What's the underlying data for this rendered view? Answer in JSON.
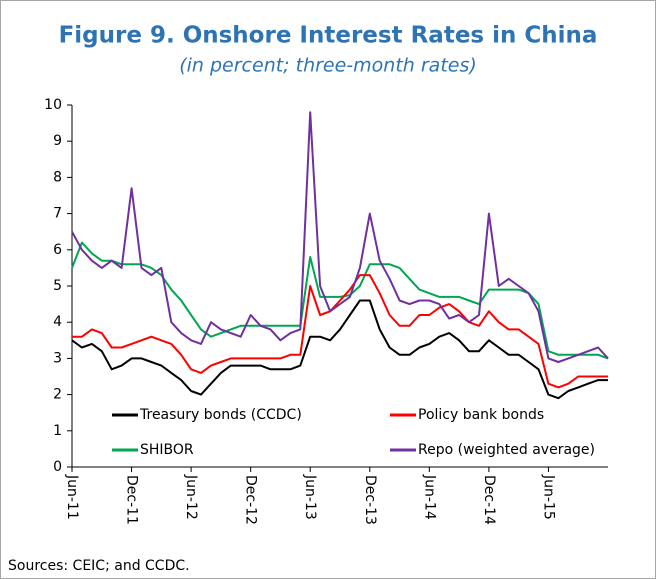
{
  "chart_data": {
    "type": "line",
    "title": "Figure 9. Onshore Interest Rates in China",
    "subtitle": "(in percent; three-month rates)",
    "source": "Sources: CEIC; and CCDC.",
    "categories": [
      "Jun-11",
      null,
      null,
      null,
      null,
      null,
      "Dec-11",
      null,
      null,
      null,
      null,
      null,
      "Jun-12",
      null,
      null,
      null,
      null,
      null,
      "Dec-12",
      null,
      null,
      null,
      null,
      null,
      "Jun-13",
      null,
      null,
      null,
      null,
      null,
      "Dec-13",
      null,
      null,
      null,
      null,
      null,
      "Jun-14",
      null,
      null,
      null,
      null,
      null,
      "Dec-14",
      null,
      null,
      null,
      null,
      null,
      "Jun-15",
      null,
      null,
      null,
      null,
      null,
      null
    ],
    "ylim": [
      0,
      10
    ],
    "yticks": [
      0,
      1,
      2,
      3,
      4,
      5,
      6,
      7,
      8,
      9,
      10
    ],
    "grid": false,
    "legend": "bottom",
    "series": [
      {
        "name": "Treasury bonds (CCDC)",
        "color": "#000000",
        "values": [
          3.5,
          3.3,
          3.4,
          3.2,
          2.7,
          2.8,
          3.0,
          3.0,
          2.9,
          2.8,
          2.6,
          2.4,
          2.1,
          2.0,
          2.3,
          2.6,
          2.8,
          2.8,
          2.8,
          2.8,
          2.7,
          2.7,
          2.7,
          2.8,
          3.6,
          3.6,
          3.5,
          3.8,
          4.2,
          4.6,
          4.6,
          3.8,
          3.3,
          3.1,
          3.1,
          3.3,
          3.4,
          3.6,
          3.7,
          3.5,
          3.2,
          3.2,
          3.5,
          3.3,
          3.1,
          3.1,
          2.9,
          2.7,
          2.0,
          1.9,
          2.1,
          2.2,
          2.3,
          2.4,
          2.4
        ]
      },
      {
        "name": "Policy bank bonds",
        "color": "#ff0000",
        "values": [
          3.6,
          3.6,
          3.8,
          3.7,
          3.3,
          3.3,
          3.4,
          3.5,
          3.6,
          3.5,
          3.4,
          3.1,
          2.7,
          2.6,
          2.8,
          2.9,
          3.0,
          3.0,
          3.0,
          3.0,
          3.0,
          3.0,
          3.1,
          3.1,
          5.0,
          4.2,
          4.3,
          4.6,
          4.9,
          5.3,
          5.3,
          4.8,
          4.2,
          3.9,
          3.9,
          4.2,
          4.2,
          4.4,
          4.5,
          4.3,
          4.0,
          3.9,
          4.3,
          4.0,
          3.8,
          3.8,
          3.6,
          3.4,
          2.3,
          2.2,
          2.3,
          2.5,
          2.5,
          2.5,
          2.5
        ]
      },
      {
        "name": "SHIBOR",
        "color": "#00a651",
        "values": [
          5.5,
          6.2,
          5.9,
          5.7,
          5.7,
          5.6,
          5.6,
          5.6,
          5.5,
          5.3,
          4.9,
          4.6,
          4.2,
          3.8,
          3.6,
          3.7,
          3.8,
          3.9,
          3.9,
          3.9,
          3.9,
          3.9,
          3.9,
          3.9,
          5.8,
          4.7,
          4.7,
          4.7,
          4.75,
          5.0,
          5.6,
          5.6,
          5.6,
          5.5,
          5.2,
          4.9,
          4.8,
          4.7,
          4.7,
          4.7,
          4.6,
          4.5,
          4.9,
          4.9,
          4.9,
          4.9,
          4.8,
          4.5,
          3.2,
          3.1,
          3.1,
          3.1,
          3.1,
          3.1,
          3.0
        ]
      },
      {
        "name": "Repo (weighted average)",
        "color": "#7030a0",
        "values": [
          6.5,
          6.0,
          5.7,
          5.5,
          5.7,
          5.5,
          7.7,
          5.5,
          5.3,
          5.5,
          4.0,
          3.7,
          3.5,
          3.4,
          4.0,
          3.8,
          3.7,
          3.6,
          4.2,
          3.9,
          3.8,
          3.5,
          3.7,
          3.8,
          9.8,
          5.0,
          4.3,
          4.5,
          4.7,
          5.5,
          7.0,
          5.7,
          5.2,
          4.6,
          4.5,
          4.6,
          4.6,
          4.5,
          4.1,
          4.2,
          4.0,
          4.2,
          7.0,
          5.0,
          5.2,
          5.0,
          4.8,
          4.3,
          3.0,
          2.9,
          3.0,
          3.1,
          3.2,
          3.3,
          3.0
        ]
      }
    ]
  }
}
